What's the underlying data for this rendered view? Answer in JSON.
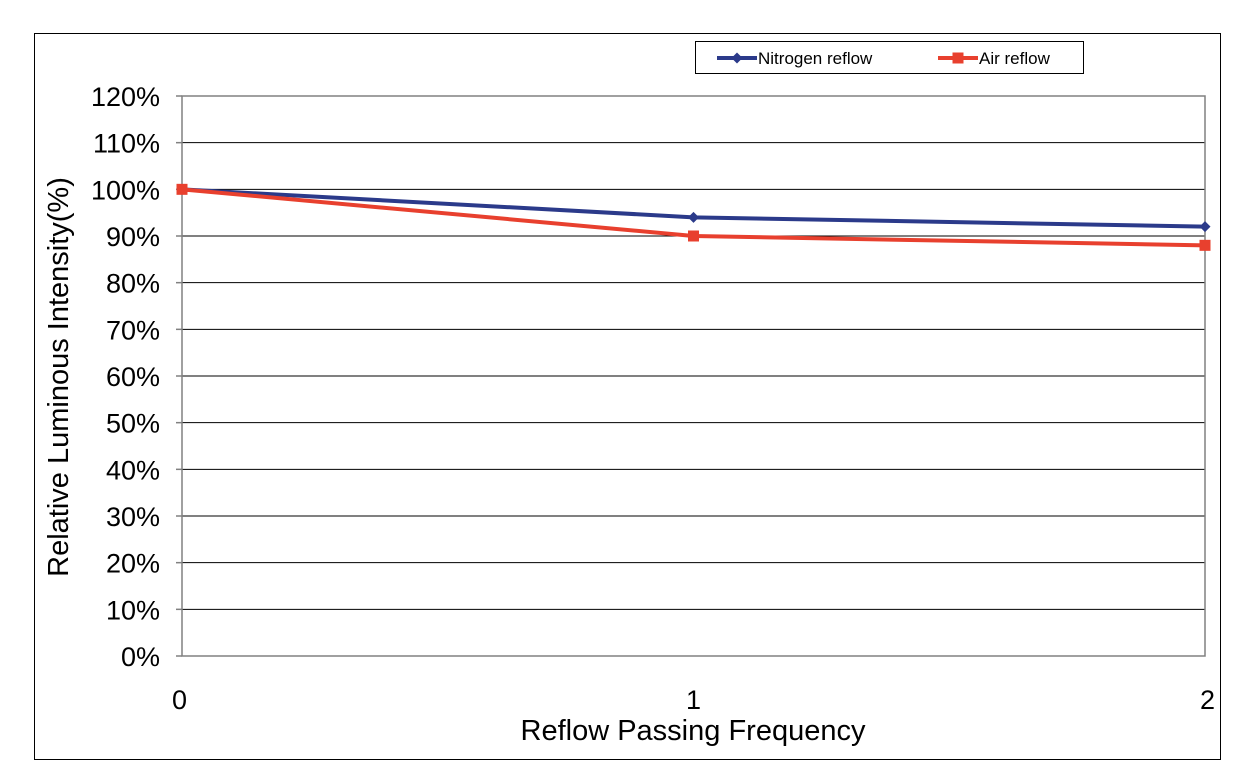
{
  "chart_data": {
    "type": "line",
    "title": "",
    "xlabel": "Reflow Passing Frequency",
    "ylabel": "Relative Luminous Intensity(%)",
    "x": [
      0,
      1,
      2
    ],
    "x_tick_labels": [
      "0",
      "1",
      "2"
    ],
    "ylim": [
      0,
      120
    ],
    "y_unit": "%",
    "y_tick_labels": [
      "0%",
      "10%",
      "20%",
      "30%",
      "40%",
      "50%",
      "60%",
      "70%",
      "80%",
      "90%",
      "100%",
      "110%",
      "120%"
    ],
    "grid": true,
    "legend_position": "top-right",
    "series": [
      {
        "name": "Nitrogen reflow",
        "values": [
          100,
          94,
          92
        ],
        "color": "#2b3a8a",
        "marker": "diamond"
      },
      {
        "name": "Air reflow",
        "values": [
          100,
          90,
          88
        ],
        "color": "#e8402e",
        "marker": "square"
      }
    ]
  }
}
